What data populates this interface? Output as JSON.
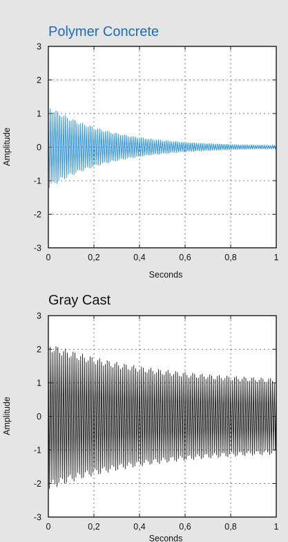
{
  "chart_data": [
    {
      "type": "line",
      "title": "Polymer Concrete",
      "title_color": "#1a6cc0",
      "line_color": "#2a8fd4",
      "xlabel": "Seconds",
      "ylabel": "Amplitude",
      "xlim": [
        0,
        1
      ],
      "ylim": [
        -3,
        3
      ],
      "x_ticks": [
        "0",
        "0,2",
        "0,4",
        "0,6",
        "0,8",
        "1"
      ],
      "y_ticks": [
        "3",
        "2",
        "1",
        "0",
        "-1",
        "-2",
        "-3"
      ],
      "grid": true,
      "signal": {
        "form": "decaying oscillation",
        "initial_amplitude": 1.25,
        "amplitude_at_0.4s": 0.3,
        "amplitude_at_1s": 0.05,
        "cycles": 120
      }
    },
    {
      "type": "line",
      "title": "Gray Cast",
      "title_color": "#111111",
      "line_color": "#1a1a1a",
      "xlabel": "Seconds",
      "ylabel": "Amplitude",
      "xlim": [
        0,
        1
      ],
      "ylim": [
        -3,
        3
      ],
      "x_ticks": [
        "0",
        "0,2",
        "0,4",
        "0,6",
        "0,8",
        "1"
      ],
      "y_ticks": [
        "3",
        "2",
        "1",
        "0",
        "-1",
        "-2",
        "-3"
      ],
      "grid": true,
      "signal": {
        "form": "slowly decaying oscillation",
        "initial_amplitude": 2.2,
        "amplitude_at_0.4s": 1.5,
        "amplitude_at_1s": 1.05,
        "cycles": 120
      }
    }
  ]
}
